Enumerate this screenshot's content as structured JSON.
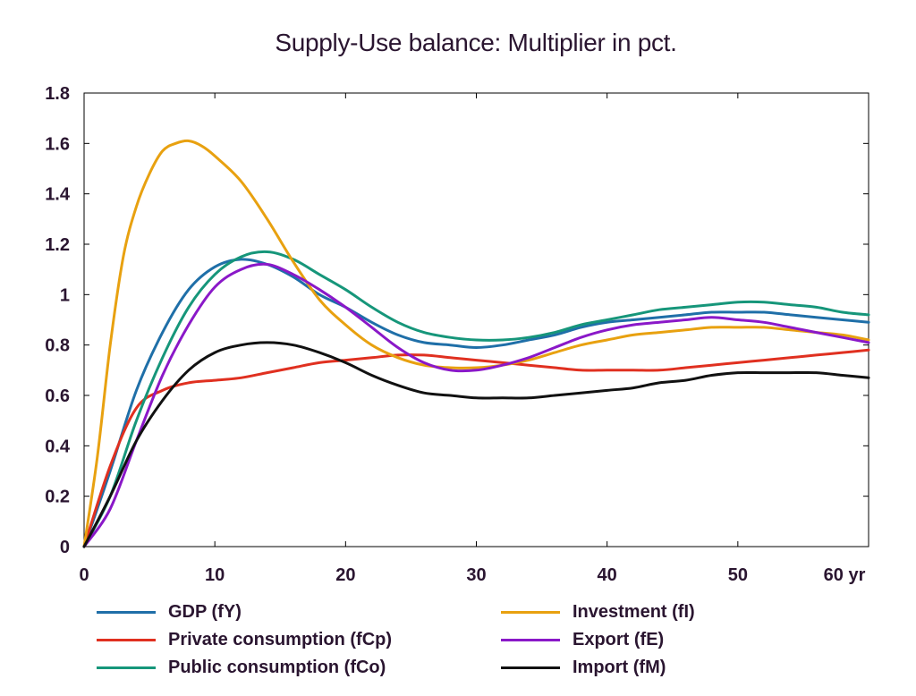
{
  "chart_data": {
    "type": "line",
    "title": "Supply-Use balance: Multiplier in pct.",
    "xlabel": "",
    "ylabel": "",
    "xlim": [
      0,
      60
    ],
    "ylim": [
      0,
      1.8
    ],
    "x_ticks": [
      0,
      10,
      20,
      30,
      40,
      50,
      60
    ],
    "x_tick_labels": [
      "0",
      "10",
      "20",
      "30",
      "40",
      "50",
      "60 yr"
    ],
    "y_ticks": [
      0,
      0.2,
      0.4,
      0.6,
      0.8,
      1,
      1.2,
      1.4,
      1.6,
      1.8
    ],
    "y_tick_labels": [
      "0",
      "0.2",
      "0.4",
      "0.6",
      "0.8",
      "1",
      "1.2",
      "1.4",
      "1.6",
      "1.8"
    ],
    "grid": false,
    "legend_position": "bottom",
    "series": [
      {
        "name": "GDP (fY)",
        "color": "#1f6fa8",
        "x": [
          0,
          2,
          4,
          6,
          8,
          10,
          12,
          14,
          16,
          18,
          20,
          22,
          24,
          26,
          28,
          30,
          32,
          34,
          36,
          38,
          40,
          42,
          44,
          46,
          48,
          50,
          52,
          54,
          56,
          58,
          60
        ],
        "y": [
          0,
          0.3,
          0.62,
          0.85,
          1.02,
          1.11,
          1.14,
          1.12,
          1.07,
          1.0,
          0.95,
          0.89,
          0.84,
          0.81,
          0.8,
          0.79,
          0.8,
          0.82,
          0.84,
          0.87,
          0.89,
          0.9,
          0.91,
          0.92,
          0.93,
          0.93,
          0.93,
          0.92,
          0.91,
          0.9,
          0.89
        ]
      },
      {
        "name": "Private consumption (fCp)",
        "color": "#e03020",
        "x": [
          0,
          2,
          4,
          6,
          8,
          10,
          12,
          14,
          16,
          18,
          20,
          22,
          24,
          26,
          28,
          30,
          32,
          34,
          36,
          38,
          40,
          42,
          44,
          46,
          48,
          50,
          52,
          54,
          56,
          58,
          60
        ],
        "y": [
          0,
          0.32,
          0.55,
          0.62,
          0.65,
          0.66,
          0.67,
          0.69,
          0.71,
          0.73,
          0.74,
          0.75,
          0.76,
          0.76,
          0.75,
          0.74,
          0.73,
          0.72,
          0.71,
          0.7,
          0.7,
          0.7,
          0.7,
          0.71,
          0.72,
          0.73,
          0.74,
          0.75,
          0.76,
          0.77,
          0.78
        ]
      },
      {
        "name": "Public consumption (fCo)",
        "color": "#16967a",
        "x": [
          0,
          2,
          4,
          6,
          8,
          10,
          12,
          14,
          16,
          18,
          20,
          22,
          24,
          26,
          28,
          30,
          32,
          34,
          36,
          38,
          40,
          42,
          44,
          46,
          48,
          50,
          52,
          54,
          56,
          58,
          60
        ],
        "y": [
          0,
          0.2,
          0.5,
          0.75,
          0.95,
          1.08,
          1.15,
          1.17,
          1.14,
          1.08,
          1.02,
          0.95,
          0.89,
          0.85,
          0.83,
          0.82,
          0.82,
          0.83,
          0.85,
          0.88,
          0.9,
          0.92,
          0.94,
          0.95,
          0.96,
          0.97,
          0.97,
          0.96,
          0.95,
          0.93,
          0.92
        ]
      },
      {
        "name": "Investment (fI)",
        "color": "#e8a110",
        "x": [
          0,
          1,
          2,
          3,
          4,
          5,
          6,
          7,
          8,
          9,
          10,
          12,
          14,
          16,
          18,
          20,
          22,
          24,
          26,
          28,
          30,
          32,
          34,
          36,
          38,
          40,
          42,
          44,
          46,
          48,
          50,
          52,
          54,
          56,
          58,
          60
        ],
        "y": [
          0,
          0.35,
          0.8,
          1.15,
          1.35,
          1.48,
          1.57,
          1.6,
          1.61,
          1.59,
          1.55,
          1.45,
          1.3,
          1.13,
          0.98,
          0.88,
          0.8,
          0.75,
          0.72,
          0.71,
          0.71,
          0.72,
          0.74,
          0.77,
          0.8,
          0.82,
          0.84,
          0.85,
          0.86,
          0.87,
          0.87,
          0.87,
          0.86,
          0.85,
          0.84,
          0.82
        ]
      },
      {
        "name": "Export (fE)",
        "color": "#8a18c8",
        "x": [
          0,
          2,
          4,
          6,
          8,
          10,
          12,
          14,
          16,
          18,
          20,
          22,
          24,
          26,
          28,
          30,
          32,
          34,
          36,
          38,
          40,
          42,
          44,
          46,
          48,
          50,
          52,
          54,
          56,
          58,
          60
        ],
        "y": [
          0,
          0.15,
          0.42,
          0.68,
          0.88,
          1.03,
          1.1,
          1.12,
          1.08,
          1.02,
          0.95,
          0.87,
          0.79,
          0.73,
          0.7,
          0.7,
          0.72,
          0.75,
          0.79,
          0.83,
          0.86,
          0.88,
          0.89,
          0.9,
          0.91,
          0.9,
          0.89,
          0.87,
          0.85,
          0.83,
          0.81
        ]
      },
      {
        "name": "Import (fM)",
        "color": "#111111",
        "x": [
          0,
          2,
          4,
          6,
          8,
          10,
          12,
          14,
          16,
          18,
          20,
          22,
          24,
          26,
          28,
          30,
          32,
          34,
          36,
          38,
          40,
          42,
          44,
          46,
          48,
          50,
          52,
          54,
          56,
          58,
          60
        ],
        "y": [
          0,
          0.2,
          0.42,
          0.58,
          0.7,
          0.77,
          0.8,
          0.81,
          0.8,
          0.77,
          0.73,
          0.68,
          0.64,
          0.61,
          0.6,
          0.59,
          0.59,
          0.59,
          0.6,
          0.61,
          0.62,
          0.63,
          0.65,
          0.66,
          0.68,
          0.69,
          0.69,
          0.69,
          0.69,
          0.68,
          0.67
        ]
      }
    ]
  }
}
